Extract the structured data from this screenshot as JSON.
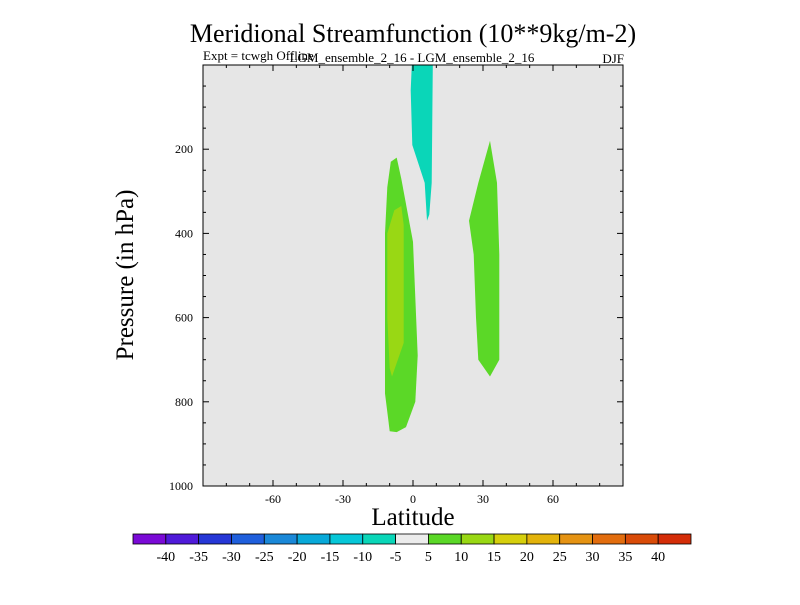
{
  "chart_data": {
    "type": "contour",
    "title": "Meridional Streamfunction (10**9kg/m-2)",
    "subtitle_left": "Expt = tcwgh Offline",
    "subtitle_center": "LGM_ensemble_2_16 - LGM_ensemble_2_16",
    "subtitle_right": "DJF",
    "xlabel": "Latitude",
    "ylabel": "Pressure (in hPa)",
    "xlim": [
      -90,
      90
    ],
    "ylim": [
      1000,
      0
    ],
    "xticks": [
      -60,
      -30,
      0,
      30,
      60
    ],
    "yticks": [
      200,
      400,
      600,
      800,
      1000
    ],
    "background_color": "#e6e6e6",
    "colorbar": {
      "labels": [
        "-40",
        "-35",
        "-30",
        "-25",
        "-20",
        "-15",
        "-10",
        "-5",
        "5",
        "10",
        "15",
        "20",
        "25",
        "30",
        "35",
        "40"
      ],
      "colors": [
        "#7a0ad6",
        "#4f1ad9",
        "#2637d6",
        "#1f5fdc",
        "#1a88d8",
        "#08a9d9",
        "#06c7d8",
        "#0ad6b8",
        "#ececec",
        "#5bd827",
        "#99d814",
        "#d6cf0c",
        "#e3b30b",
        "#e59313",
        "#e26d0e",
        "#d94b08",
        "#d42d08"
      ]
    },
    "regions": [
      {
        "name": "negative-cell-upper",
        "level": "-10 to -5",
        "color": "#0ad6b8",
        "points": [
          [
            -0.5,
            0
          ],
          [
            8.5,
            0
          ],
          [
            8,
            280
          ],
          [
            7,
            355
          ],
          [
            6,
            370
          ],
          [
            5,
            280
          ],
          [
            -0.3,
            190
          ],
          [
            -1,
            60
          ]
        ]
      },
      {
        "name": "positive-cell-southern",
        "level": "5 to 10",
        "color": "#5bd827",
        "points": [
          [
            -7,
            220
          ],
          [
            -5,
            270
          ],
          [
            0,
            420
          ],
          [
            2,
            690
          ],
          [
            1,
            800
          ],
          [
            -3,
            860
          ],
          [
            -7,
            872
          ],
          [
            -10,
            870
          ],
          [
            -12,
            780
          ],
          [
            -12,
            600
          ],
          [
            -12,
            400
          ],
          [
            -11,
            290
          ],
          [
            -9.5,
            230
          ]
        ]
      },
      {
        "name": "positive-cell-southern-core",
        "level": "10 to 15",
        "color": "#99d814",
        "points": [
          [
            -5,
            335
          ],
          [
            -4,
            380
          ],
          [
            -4,
            660
          ],
          [
            -9,
            740
          ],
          [
            -10,
            720
          ],
          [
            -11,
            600
          ],
          [
            -11,
            400
          ],
          [
            -8,
            345
          ]
        ]
      },
      {
        "name": "positive-cell-northern",
        "level": "5 to 10",
        "color": "#5bd827",
        "points": [
          [
            33,
            180
          ],
          [
            36,
            280
          ],
          [
            37,
            450
          ],
          [
            37,
            700
          ],
          [
            33,
            740
          ],
          [
            28,
            700
          ],
          [
            27,
            600
          ],
          [
            26,
            450
          ],
          [
            24,
            370
          ],
          [
            28,
            280
          ]
        ]
      }
    ]
  }
}
